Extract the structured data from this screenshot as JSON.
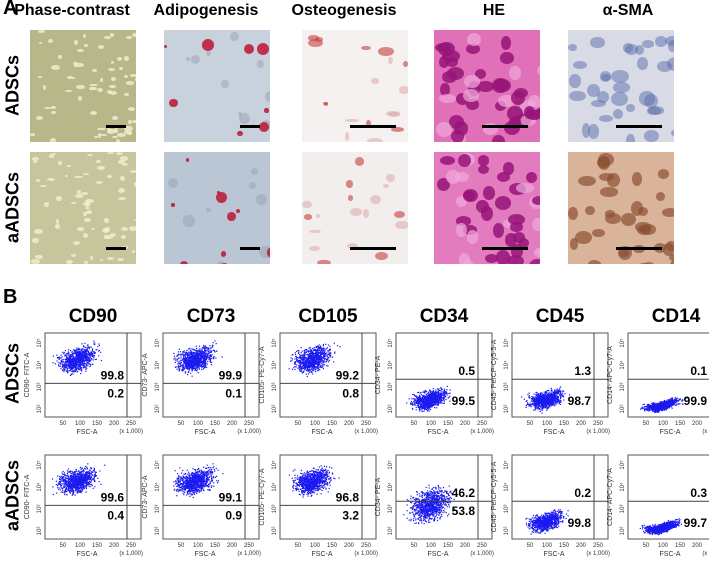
{
  "panel_a": {
    "label": "A",
    "columns": [
      "Phase-contrast",
      "Adipogenesis",
      "Osteogenesis",
      "HE",
      "α-SMA"
    ],
    "rows": [
      "ADSCs",
      "aADSCs"
    ]
  },
  "panel_b": {
    "label": "B",
    "columns": [
      "CD90",
      "CD73",
      "CD105",
      "CD34",
      "CD45",
      "CD14"
    ],
    "rows": [
      "ADSCs",
      "aADSCs"
    ],
    "y_axis_labels": [
      "CD90- FITC-A",
      "CD73- APC-A",
      "CD105- PE-Cy7-A",
      "CD34- PE-A",
      "CD45- PerCP-Cy5-5-A",
      "CD14- APC-Cy7-A"
    ],
    "x_axis_label": "FSC-A",
    "x_axis_unit": "(x 1,000)",
    "x_ticks": [
      "50",
      "100",
      "150",
      "200",
      "250"
    ],
    "y_ticks": [
      "10²",
      "10³",
      "10⁴",
      "10⁵"
    ],
    "values": [
      [
        {
          "upper": "99.8",
          "lower": "0.2",
          "positive": true
        },
        {
          "upper": "99.9",
          "lower": "0.1",
          "positive": true
        },
        {
          "upper": "99.2",
          "lower": "0.8",
          "positive": true
        },
        {
          "upper": "0.5",
          "lower": "99.5",
          "positive": false
        },
        {
          "upper": "1.3",
          "lower": "98.7",
          "positive": false
        },
        {
          "upper": "0.1",
          "lower": "99.9",
          "positive": false
        }
      ],
      [
        {
          "upper": "99.6",
          "lower": "0.4",
          "positive": true
        },
        {
          "upper": "99.1",
          "lower": "0.9",
          "positive": true
        },
        {
          "upper": "96.8",
          "lower": "3.2",
          "positive": true
        },
        {
          "upper": "46.2",
          "lower": "53.8",
          "positive": null
        },
        {
          "upper": "0.2",
          "lower": "99.8",
          "positive": false
        },
        {
          "upper": "0.3",
          "lower": "99.7",
          "positive": false
        }
      ]
    ]
  }
}
